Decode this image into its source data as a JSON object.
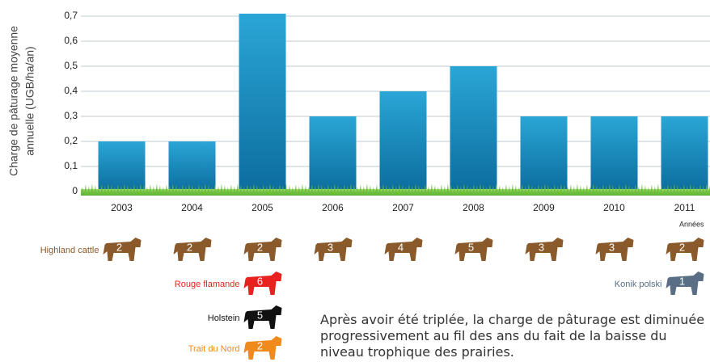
{
  "chart_data": {
    "type": "bar",
    "y_label": [
      "Charge de pâturage moyenne",
      "annuelle (UGB/ha/an)"
    ],
    "x_label": "Années",
    "categories": [
      "2003",
      "2004",
      "2005",
      "2006",
      "2007",
      "2008",
      "2009",
      "2010",
      "2011"
    ],
    "values": [
      0.2,
      0.2,
      0.71,
      0.3,
      0.4,
      0.5,
      0.3,
      0.3,
      0.3
    ],
    "color": "#1786bd",
    "ylim": [
      0,
      0.75
    ],
    "yticks": [
      0,
      {
        "value": 0.1,
        "label": "0,1"
      },
      {
        "value": 0.2,
        "label": "0,2"
      },
      {
        "value": 0.3,
        "label": "0,3"
      },
      {
        "value": 0.4,
        "label": "0,4"
      },
      {
        "value": 0.5,
        "label": "0,5"
      },
      {
        "value": 0.6,
        "label": "0,6"
      },
      {
        "value": 0.7,
        "label": "0,7"
      }
    ],
    "grid": true,
    "herds": [
      {
        "name": "Highland cattle",
        "color": "#8a5a2a",
        "counts": [
          2,
          2,
          2,
          3,
          4,
          5,
          3,
          3,
          2
        ]
      },
      {
        "name": "Rouge flamande",
        "color": "#e8231f",
        "counts": [
          null,
          null,
          6,
          null,
          null,
          null,
          null,
          null,
          null
        ]
      },
      {
        "name": "Holstein",
        "color": "#111111",
        "counts": [
          null,
          null,
          5,
          null,
          null,
          null,
          null,
          null,
          null
        ]
      },
      {
        "name": "Trait du Nord",
        "color": "#f08a1c",
        "counts": [
          null,
          null,
          2,
          null,
          null,
          null,
          null,
          null,
          null
        ]
      },
      {
        "name": "Konik polski",
        "color": "#5a6f86",
        "counts": [
          null,
          null,
          null,
          null,
          null,
          null,
          null,
          null,
          1
        ]
      }
    ],
    "caption": "Après avoir été triplée, la charge de pâturage est diminuée progressivement au fil des ans du fait de la baisse du niveau trophique des prairies."
  }
}
